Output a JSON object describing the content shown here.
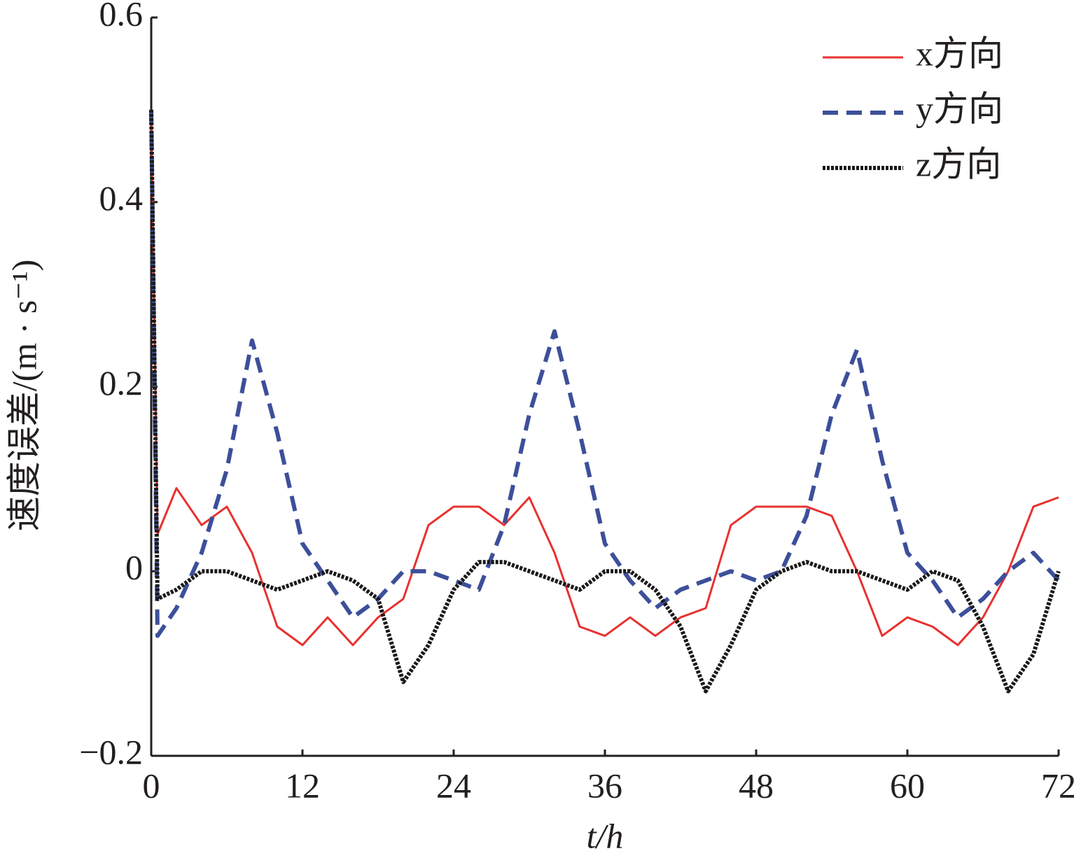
{
  "chart_data": {
    "type": "line",
    "ylabel": "速度误差/(m · s⁻¹)",
    "xlabel": "t/h",
    "x": [
      0,
      0.5,
      2,
      4,
      6,
      8,
      10,
      12,
      14,
      16,
      18,
      20,
      22,
      24,
      26,
      28,
      30,
      32,
      34,
      36,
      38,
      40,
      42,
      44,
      46,
      48,
      50,
      52,
      54,
      56,
      58,
      60,
      62,
      64,
      66,
      68,
      70,
      72
    ],
    "series": [
      {
        "name": "x方向",
        "color": "#e8312f",
        "style": "solid",
        "values": [
          0.5,
          0.04,
          0.09,
          0.05,
          0.07,
          0.02,
          -0.06,
          -0.08,
          -0.05,
          -0.08,
          -0.05,
          -0.03,
          0.05,
          0.07,
          0.07,
          0.05,
          0.08,
          0.02,
          -0.06,
          -0.07,
          -0.05,
          -0.07,
          -0.05,
          -0.04,
          0.05,
          0.07,
          0.07,
          0.07,
          0.06,
          0.0,
          -0.07,
          -0.05,
          -0.06,
          -0.08,
          -0.05,
          0.0,
          0.07,
          0.08
        ]
      },
      {
        "name": "y方向",
        "color": "#3d4f9a",
        "style": "dashed",
        "values": [
          0.5,
          -0.07,
          -0.04,
          0.02,
          0.11,
          0.25,
          0.15,
          0.03,
          -0.01,
          -0.05,
          -0.03,
          0.0,
          0.0,
          -0.01,
          -0.02,
          0.05,
          0.17,
          0.26,
          0.15,
          0.03,
          -0.01,
          -0.04,
          -0.02,
          -0.01,
          0.0,
          -0.01,
          0.0,
          0.06,
          0.17,
          0.24,
          0.12,
          0.02,
          -0.01,
          -0.05,
          -0.03,
          0.0,
          0.02,
          -0.01
        ]
      },
      {
        "name": "z方向",
        "color": "#1a1a1a",
        "style": "dotted",
        "values": [
          0.5,
          -0.03,
          -0.02,
          0.0,
          0.0,
          -0.01,
          -0.02,
          -0.01,
          0.0,
          -0.01,
          -0.03,
          -0.12,
          -0.08,
          -0.02,
          0.01,
          0.01,
          0.0,
          -0.01,
          -0.02,
          0.0,
          0.0,
          -0.02,
          -0.06,
          -0.13,
          -0.08,
          -0.02,
          0.0,
          0.01,
          0.0,
          0.0,
          -0.01,
          -0.02,
          0.0,
          -0.01,
          -0.06,
          -0.13,
          -0.09,
          0.0
        ]
      }
    ],
    "xlim": [
      0,
      72
    ],
    "xticks": [
      0,
      12,
      24,
      36,
      48,
      60,
      72
    ],
    "ylim": [
      -0.2,
      0.6
    ],
    "yticks": [
      {
        "value": -0.2,
        "label": "−0.2"
      },
      0,
      0.2,
      0.4,
      0.6
    ],
    "legend": "upper right",
    "grid": false
  }
}
